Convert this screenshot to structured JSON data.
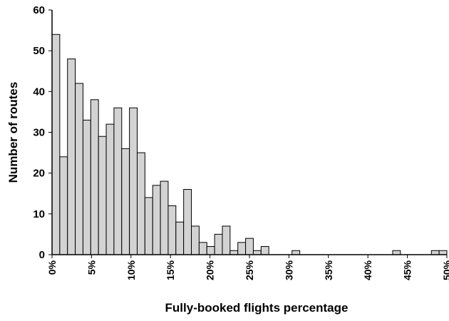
{
  "chart_data": {
    "type": "bar",
    "title": "",
    "xlabel": "Fully-booked flights percentage",
    "ylabel": "Number of routes",
    "ylim": [
      0,
      60
    ],
    "xlim": [
      0,
      50
    ],
    "bin_width": 1,
    "grid": false,
    "legend": "none",
    "y_ticks": [
      "0",
      "10",
      "20",
      "30",
      "40",
      "50",
      "60"
    ],
    "x_ticks": [
      "0%",
      "5%",
      "10%",
      "15%",
      "20%",
      "25%",
      "30%",
      "35%",
      "40%",
      "45%",
      "50%"
    ],
    "values": [
      54,
      24,
      48,
      42,
      33,
      38,
      29,
      32,
      36,
      26,
      36,
      25,
      14,
      17,
      18,
      12,
      8,
      16,
      7,
      3,
      2,
      5,
      7,
      1,
      3,
      4,
      1,
      2,
      0,
      0,
      0,
      1,
      0,
      0,
      0,
      0,
      0,
      0,
      0,
      0,
      0,
      0,
      0,
      0,
      1,
      0,
      0,
      0,
      0,
      1,
      1
    ],
    "colors": {
      "bar_fill": "#d3d3d3",
      "bar_stroke": "#000000"
    }
  }
}
